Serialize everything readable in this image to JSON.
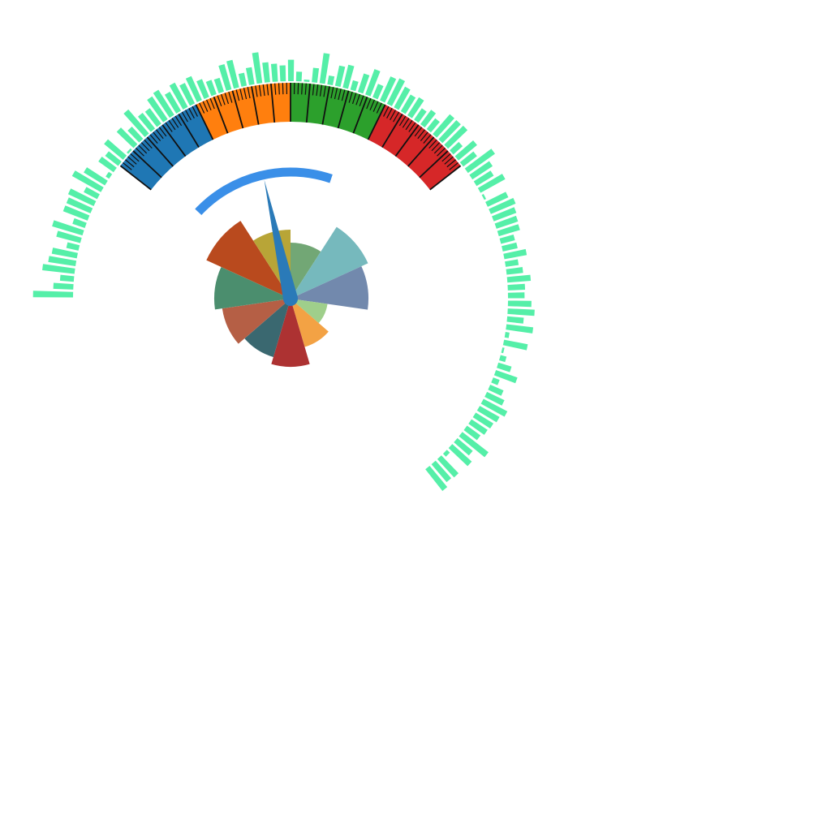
{
  "chart_data": [
    {
      "type": "gauge",
      "bands": [
        {
          "from": 0,
          "to": 25,
          "color": "#1f77b4"
        },
        {
          "from": 25,
          "to": 50,
          "color": "#ff7f0e"
        },
        {
          "from": 50,
          "to": 75,
          "color": "#2ca02c"
        },
        {
          "from": 75,
          "to": 100,
          "color": "#d62728"
        }
      ],
      "range": [
        0,
        100
      ],
      "major_tick_step": 5,
      "minor_tick_step": 1,
      "needle_value": 38,
      "needle_color": "#2a7ab8",
      "progress_value": 68,
      "progress_color": "#3a8fe8"
    },
    {
      "type": "polar-bar",
      "series_color": "#55efa8",
      "values": [
        58,
        29,
        20,
        47,
        40,
        37,
        18,
        36,
        46,
        19,
        38,
        38,
        41,
        22,
        48,
        36,
        6,
        27,
        24,
        36,
        3,
        34,
        24,
        46,
        29,
        28,
        40,
        43,
        32,
        40,
        33,
        38,
        28,
        22,
        21,
        38,
        41,
        19,
        25,
        45,
        29,
        26,
        23,
        31,
        14,
        3,
        21,
        44,
        13,
        30,
        34,
        14,
        28,
        39,
        21,
        38,
        41,
        34,
        28,
        31,
        20,
        26,
        20,
        38,
        38,
        39,
        18,
        35,
        25,
        48,
        35,
        29,
        41,
        3,
        33,
        39,
        35,
        33,
        32,
        21,
        22,
        33,
        19,
        24,
        34,
        25,
        24,
        34,
        39,
        24,
        39,
        6,
        35,
        3,
        9,
        20,
        33,
        10,
        21,
        28,
        39,
        33,
        30,
        28,
        24,
        48,
        29,
        38,
        6,
        36,
        34,
        40
      ]
    },
    {
      "type": "rose",
      "slices": [
        {
          "value": 69,
          "color": "#72a775"
        },
        {
          "value": 105,
          "color": "#76b9bd"
        },
        {
          "value": 96,
          "color": "#7289ad"
        },
        {
          "value": 46,
          "color": "#9fcf8b"
        },
        {
          "value": 62,
          "color": "#f3a244"
        },
        {
          "value": 84,
          "color": "#ad3232"
        },
        {
          "value": 75,
          "color": "#3a6870"
        },
        {
          "value": 85,
          "color": "#b55f45"
        },
        {
          "value": 94,
          "color": "#4b8e6e"
        },
        {
          "value": 114,
          "color": "#b94a1e"
        },
        {
          "value": 85,
          "color": "#b8a537"
        }
      ]
    }
  ]
}
